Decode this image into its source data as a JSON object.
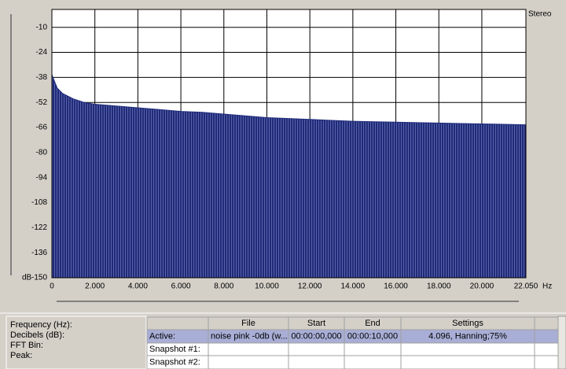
{
  "chart_data": {
    "type": "area",
    "title": "Stereo",
    "xlabel": "Hz",
    "ylabel": "dB",
    "x": [
      0,
      250,
      500,
      1000,
      1500,
      2000,
      3000,
      4000,
      5000,
      6000,
      7000,
      8000,
      9000,
      10000,
      11000,
      12000,
      13000,
      14000,
      15000,
      16000,
      17000,
      18000,
      19000,
      20000,
      21000,
      22050
    ],
    "series": [
      {
        "name": "Stereo",
        "color": "#1f2a7a",
        "values": [
          -36.5,
          -44,
          -47,
          -50,
          -52,
          -53,
          -54,
          -55,
          -56,
          -57,
          -57.5,
          -58.5,
          -59.5,
          -60.5,
          -61,
          -61.5,
          -62,
          -62.5,
          -62.8,
          -63,
          -63.3,
          -63.5,
          -63.8,
          -64,
          -64.2,
          -64.5
        ]
      }
    ],
    "xlim": [
      0,
      22050
    ],
    "ylim": [
      -150,
      0
    ],
    "xticks": [
      0,
      {
        "value": 2000,
        "label": "2.000"
      },
      {
        "value": 4000,
        "label": "4.000"
      },
      {
        "value": 6000,
        "label": "6.000"
      },
      {
        "value": 8000,
        "label": "8.000"
      },
      {
        "value": 10000,
        "label": "10.000"
      },
      {
        "value": 12000,
        "label": "12.000"
      },
      {
        "value": 14000,
        "label": "14.000"
      },
      {
        "value": 16000,
        "label": "16.000"
      },
      {
        "value": 18000,
        "label": "18.000"
      },
      {
        "value": 20000,
        "label": "20.000"
      },
      {
        "value": 22050,
        "label": "22.050"
      }
    ],
    "yticks": [
      -150,
      -136,
      -122,
      -108,
      -94,
      -80,
      -66,
      -52,
      -38,
      -24,
      -10
    ],
    "grid": true
  },
  "info_panel": {
    "labels": [
      "Frequency (Hz):",
      "Decibels (dB):",
      "FFT Bin:",
      "Peak:"
    ]
  },
  "table": {
    "header": [
      "File",
      "Start",
      "End",
      "Settings"
    ],
    "rows": [
      [
        "Active:",
        "noise pink -0db (w...",
        "00:00:00,000",
        "00:00:10,000",
        "4.096, Hanning;75%"
      ],
      [
        "Snapshot #1:"
      ],
      [
        "Snapshot #2:"
      ]
    ]
  }
}
